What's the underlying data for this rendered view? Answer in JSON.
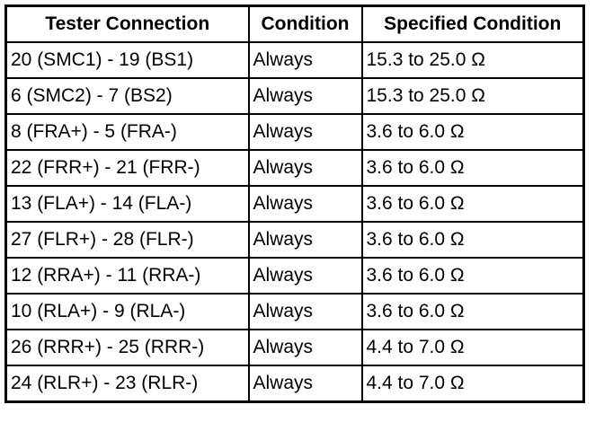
{
  "table": {
    "header": [
      "Tester Connection",
      "Condition",
      "Specified Condition"
    ],
    "rows": [
      [
        "20 (SMC1) - 19 (BS1)",
        "Always",
        "15.3 to 25.0 Ω"
      ],
      [
        "6 (SMC2) - 7 (BS2)",
        "Always",
        "15.3 to 25.0 Ω"
      ],
      [
        "8 (FRA+) - 5 (FRA-)",
        "Always",
        "3.6 to 6.0 Ω"
      ],
      [
        "22 (FRR+) - 21 (FRR-)",
        "Always",
        "3.6 to 6.0 Ω"
      ],
      [
        "13 (FLA+) - 14 (FLA-)",
        "Always",
        "3.6 to 6.0 Ω"
      ],
      [
        "27 (FLR+) - 28 (FLR-)",
        "Always",
        "3.6 to 6.0 Ω"
      ],
      [
        "12 (RRA+) - 11 (RRA-)",
        "Always",
        "3.6 to 6.0 Ω"
      ],
      [
        "10 (RLA+) - 9 (RLA-)",
        "Always",
        "3.6 to 6.0 Ω"
      ],
      [
        "26 (RRR+) - 25 (RRR-)",
        "Always",
        "4.4 to 7.0 Ω"
      ],
      [
        "24 (RLR+) - 23 (RLR-)",
        "Always",
        "4.4 to 7.0 Ω"
      ]
    ]
  }
}
